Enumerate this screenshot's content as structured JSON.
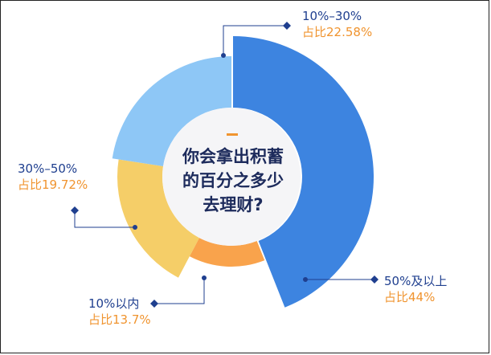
{
  "chart_data": {
    "type": "pie",
    "title_lines": [
      "你会拿出积蓄",
      "的百分之多少",
      "去理财?"
    ],
    "slices": [
      {
        "label": "50%及以上",
        "pct_label": "占比44%",
        "value": 44,
        "color": "#3d84e0"
      },
      {
        "label": "10%以内",
        "pct_label": "占比13.7%",
        "value": 13.7,
        "color": "#f9a34c"
      },
      {
        "label": "30%–50%",
        "pct_label": "占比19.72%",
        "value": 19.72,
        "color": "#f5ce68"
      },
      {
        "label": "10%–30%",
        "pct_label": "占比22.58%",
        "value": 22.58,
        "color": "#8ec7f6"
      }
    ]
  }
}
